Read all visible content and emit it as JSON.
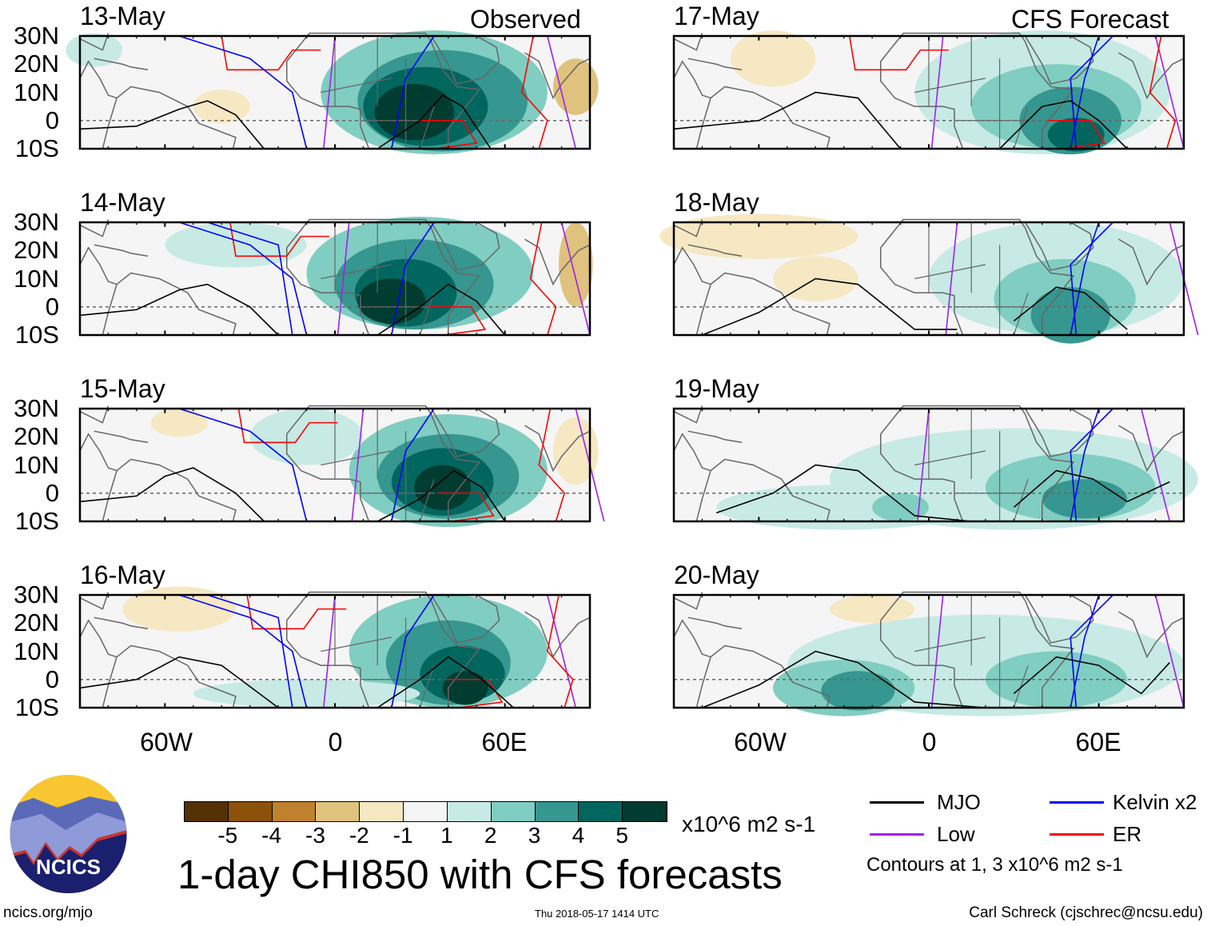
{
  "headers": {
    "left": "Observed",
    "right": "CFS Forecast"
  },
  "panels": [
    {
      "date": "13-May"
    },
    {
      "date": "14-May"
    },
    {
      "date": "15-May"
    },
    {
      "date": "16-May"
    },
    {
      "date": "17-May"
    },
    {
      "date": "18-May"
    },
    {
      "date": "19-May"
    },
    {
      "date": "20-May"
    }
  ],
  "lat_labels": [
    "30N",
    "20N",
    "10N",
    "0",
    "10S"
  ],
  "lon_labels": [
    "60W",
    "0",
    "60E"
  ],
  "colorbar": {
    "colors": [
      "#543005",
      "#8c510a",
      "#bf812d",
      "#dfc27d",
      "#f6e8c3",
      "#f5f5f5",
      "#c7eae5",
      "#80cdc1",
      "#35978f",
      "#01665e",
      "#003c30"
    ],
    "labels": [
      "-5",
      "-4",
      "-3",
      "-2",
      "-1",
      "1",
      "2",
      "3",
      "4",
      "5"
    ],
    "units": "x10^6 m2 s-1"
  },
  "title": "1-day CHI850 with CFS forecasts",
  "legend": {
    "items": [
      {
        "label": "MJO",
        "color": "#000000"
      },
      {
        "label": "Kelvin x2",
        "color": "#0000ff"
      },
      {
        "label": "Low",
        "color": "#a020f0"
      },
      {
        "label": "ER",
        "color": "#ff0000"
      }
    ],
    "note": "Contours at 1, 3 x10^6 m2 s-1"
  },
  "logo": {
    "text": "NCICS"
  },
  "footer": {
    "url": "ncics.org/mjo",
    "timestamp": "Thu 2018-05-17 1414 UTC",
    "credit": "Carl Schreck (cjschrec@ncsu.edu)"
  }
}
